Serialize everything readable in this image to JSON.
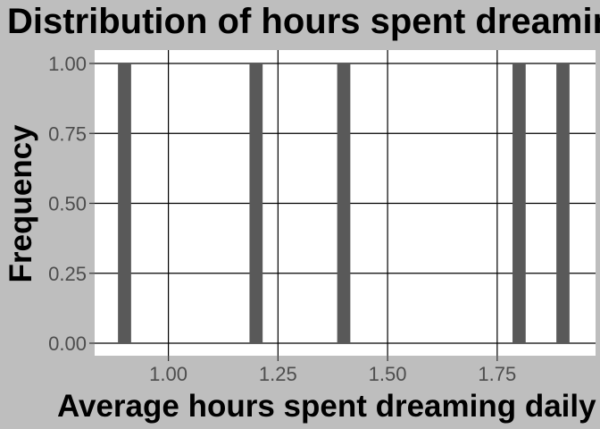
{
  "chart_data": {
    "type": "bar",
    "title": "Distribution of hours spent dreaming",
    "xlabel": "Average hours spent dreaming daily",
    "ylabel": "Frequency",
    "x": [
      0.9,
      1.2,
      1.4,
      1.8,
      1.9
    ],
    "values": [
      1,
      1,
      1,
      1,
      1
    ],
    "bin_width": 0.03,
    "xlim": [
      0.85,
      1.95
    ],
    "ylim": [
      0,
      1
    ],
    "x_ticks": [
      1.0,
      1.25,
      1.5,
      1.75
    ],
    "x_tick_labels": [
      "1.00",
      "1.25",
      "1.50",
      "1.75"
    ],
    "y_ticks": [
      0,
      0.25,
      0.5,
      0.75,
      1.0
    ],
    "y_tick_labels": [
      "0.00",
      "0.25",
      "0.50",
      "0.75",
      "1.00"
    ],
    "grid": true,
    "colors": {
      "bar": "#595959",
      "panel": "#ffffff",
      "plot_background": "#bebebe",
      "grid": "#000000"
    }
  }
}
